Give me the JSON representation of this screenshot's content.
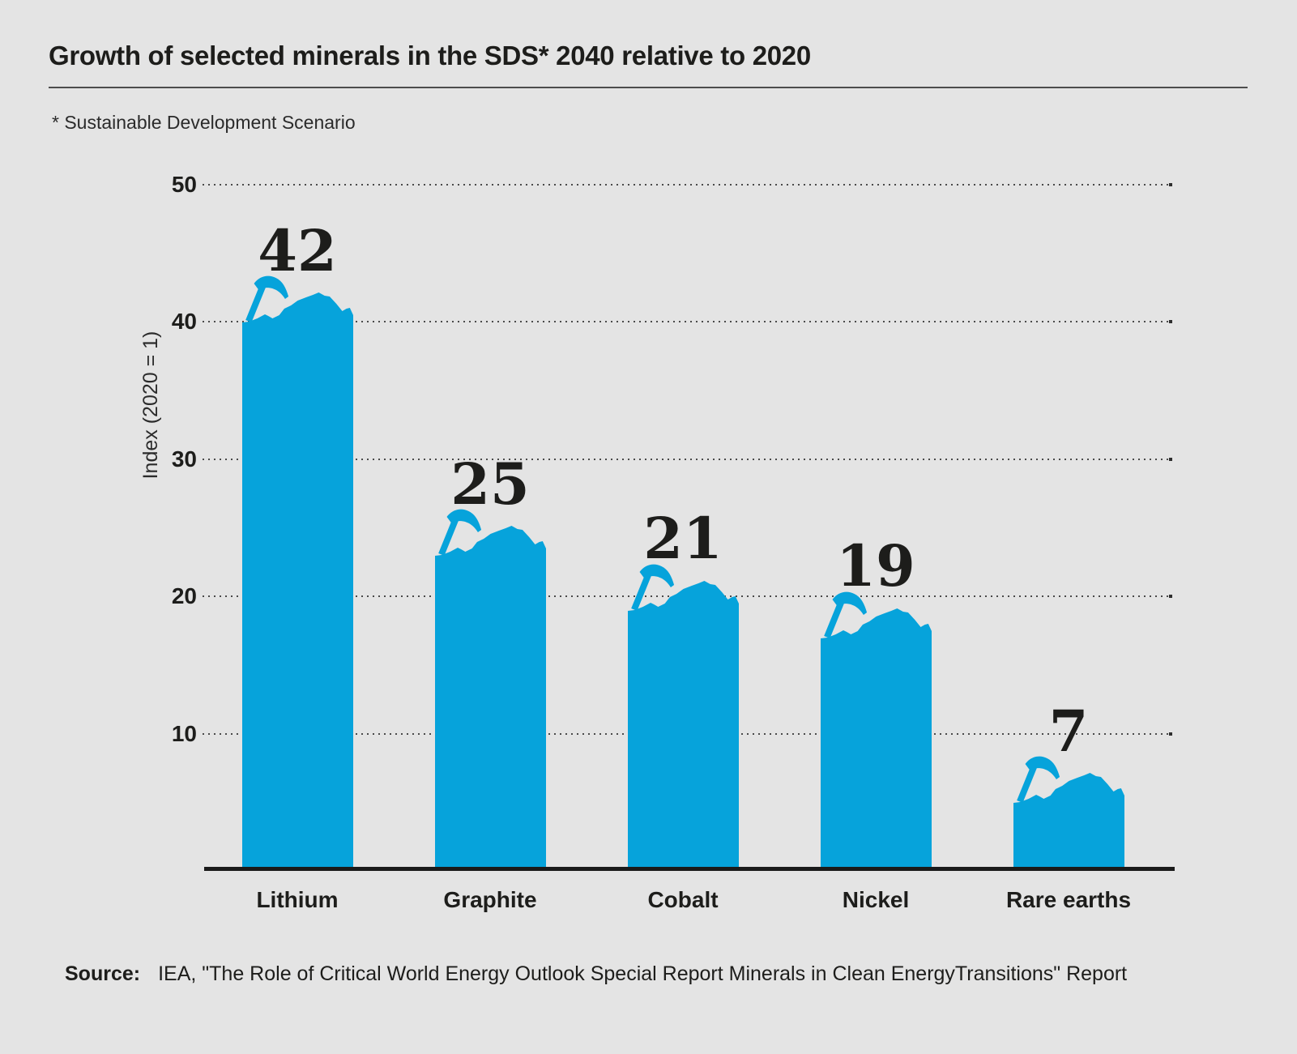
{
  "title": "Growth of selected minerals in the SDS* 2040 relative to 2020",
  "footnote": "* Sustainable Development Scenario",
  "source": {
    "label": "Source:",
    "text": "IEA, \"The Role of Critical World Energy Outlook Special Report Minerals in Clean EnergyTransitions\" Report"
  },
  "colors": {
    "bar": "#06a3db",
    "background": "#e4e4e4",
    "text": "#1d1d1b",
    "grid_dots": "#4a4a4a"
  },
  "icons": {
    "bar_top": "pickaxe-icon"
  },
  "chart_data": {
    "type": "bar",
    "title": "Growth of selected minerals in the SDS* 2040 relative to 2020",
    "categories": [
      "Lithium",
      "Graphite",
      "Cobalt",
      "Nickel",
      "Rare earths"
    ],
    "values": [
      42,
      25,
      21,
      19,
      7
    ],
    "xlabel": "",
    "ylabel": "Index (2020 = 1)",
    "yticks": [
      10,
      20,
      30,
      40,
      50
    ],
    "ylim": [
      0,
      50
    ],
    "grid": "horizontal-dotted",
    "legend": "none",
    "bar_color": "#06a3db",
    "value_labels": [
      42,
      25,
      21,
      19,
      7
    ]
  }
}
